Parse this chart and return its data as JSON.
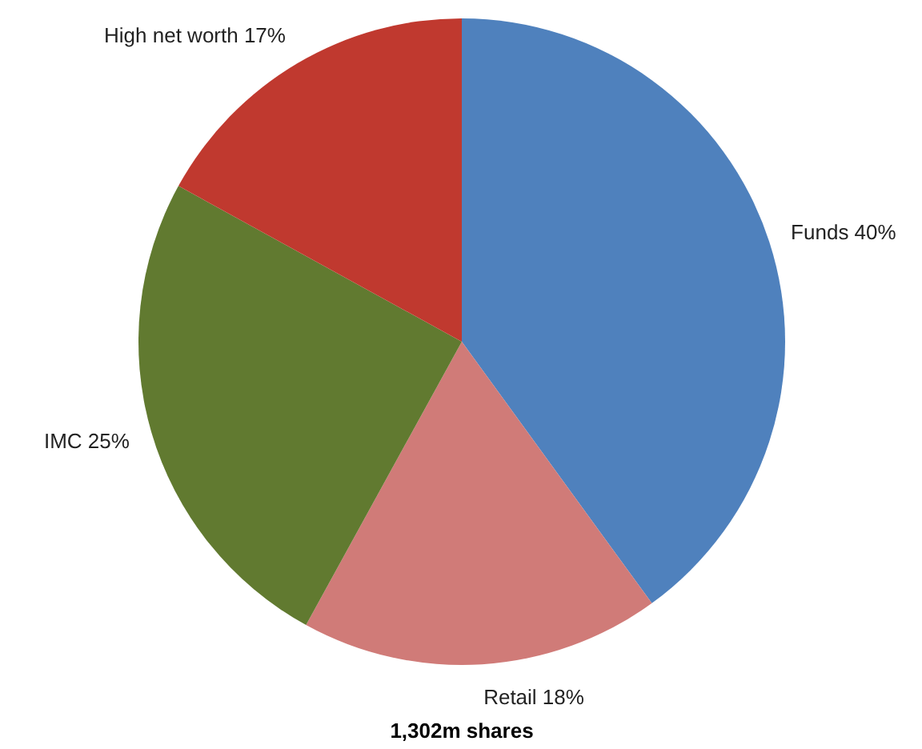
{
  "chart_data": {
    "type": "pie",
    "title": "1,302m shares",
    "categories": [
      "Funds",
      "Retail",
      "IMC",
      "High net worth"
    ],
    "values": [
      40,
      18,
      25,
      17
    ],
    "value_labels": [
      "40%",
      "18%",
      "25%",
      "17%"
    ],
    "colors": [
      "#4f81bd",
      "#d07b78",
      "#617a30",
      "#c0392f"
    ]
  }
}
